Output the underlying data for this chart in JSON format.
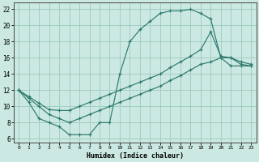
{
  "background_color": "#cce8e2",
  "grid_color": "#99ccbb",
  "line_color": "#2d7a6e",
  "xlabel": "Humidex (Indice chaleur)",
  "xlim": [
    -0.5,
    23.5
  ],
  "ylim": [
    5.5,
    22.8
  ],
  "xticks": [
    0,
    1,
    2,
    3,
    4,
    5,
    6,
    7,
    8,
    9,
    10,
    11,
    12,
    13,
    14,
    15,
    16,
    17,
    18,
    19,
    20,
    21,
    22,
    23
  ],
  "yticks": [
    6,
    8,
    10,
    12,
    14,
    16,
    18,
    20,
    22
  ],
  "curve1_x": [
    0,
    1,
    2,
    3,
    4,
    5,
    6,
    7,
    8,
    9,
    10,
    11,
    12,
    13,
    14,
    15,
    16,
    17,
    18,
    19,
    20,
    21,
    22,
    23
  ],
  "curve1_y": [
    12,
    10.5,
    8.5,
    8.0,
    7.5,
    6.5,
    6.5,
    6.5,
    8.0,
    8.0,
    14.0,
    18.0,
    19.5,
    20.5,
    21.5,
    21.8,
    21.8,
    22.0,
    21.5,
    20.8,
    16.0,
    16.0,
    15.2,
    15.0
  ],
  "curve2_x": [
    0,
    1,
    2,
    3,
    4,
    5,
    6,
    7,
    8,
    9,
    10,
    11,
    12,
    13,
    14,
    15,
    16,
    17,
    18,
    19,
    20,
    21,
    22,
    23
  ],
  "curve2_y": [
    12.0,
    11.2,
    10.4,
    9.6,
    9.5,
    9.5,
    10.0,
    10.5,
    11.0,
    11.5,
    12.0,
    12.5,
    13.0,
    13.5,
    14.0,
    14.8,
    15.5,
    16.2,
    17.0,
    19.2,
    16.2,
    16.0,
    15.5,
    15.2
  ],
  "curve3_x": [
    0,
    1,
    2,
    3,
    4,
    5,
    6,
    7,
    8,
    9,
    10,
    11,
    12,
    13,
    14,
    15,
    16,
    17,
    18,
    19,
    20,
    21,
    22,
    23
  ],
  "curve3_y": [
    12.0,
    11.0,
    10.0,
    9.0,
    8.5,
    8.0,
    8.5,
    9.0,
    9.5,
    10.0,
    10.5,
    11.0,
    11.5,
    12.0,
    12.5,
    13.2,
    13.8,
    14.5,
    15.2,
    15.5,
    16.0,
    15.0,
    15.0,
    15.0
  ]
}
